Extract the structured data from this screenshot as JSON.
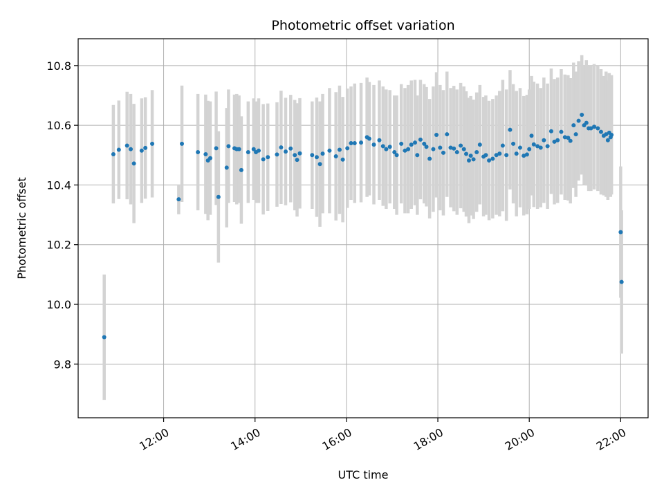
{
  "chart_data": {
    "type": "scatter",
    "title": "Photometric offset variation",
    "xlabel": "UTC time",
    "ylabel": "Photometric offset",
    "x_ticks": [
      "12:00",
      "14:00",
      "16:00",
      "18:00",
      "20:00",
      "22:00"
    ],
    "x_tick_hours": [
      12,
      14,
      16,
      18,
      20,
      22
    ],
    "y_ticks": [
      "9.8",
      "10.0",
      "10.2",
      "10.4",
      "10.6",
      "10.8"
    ],
    "y_tick_values": [
      9.8,
      10.0,
      10.2,
      10.4,
      10.6,
      10.8
    ],
    "xlim_hours": [
      10.13,
      22.6
    ],
    "ylim": [
      9.62,
      10.89
    ],
    "grid": true,
    "legend": "none",
    "colors": {
      "points": "#1f77b4",
      "errorbars": "#d3d3d3",
      "grid": "#b0b0b0"
    },
    "series": [
      {
        "time_hours": [
          10.7,
          10.9,
          11.02,
          11.2,
          11.28,
          11.35,
          11.52,
          11.6,
          11.75,
          12.33,
          12.4,
          12.75,
          12.92,
          12.97,
          13.02,
          13.15,
          13.2,
          13.38,
          13.42,
          13.55,
          13.6,
          13.65,
          13.7,
          13.85,
          13.97,
          14.02,
          14.08,
          14.18,
          14.28,
          14.48,
          14.57,
          14.67,
          14.78,
          14.87,
          14.92,
          14.98,
          15.25,
          15.35,
          15.42,
          15.48,
          15.63,
          15.77,
          15.85,
          15.92,
          16.02,
          16.1,
          16.18,
          16.32,
          16.45,
          16.5,
          16.6,
          16.72,
          16.8,
          16.87,
          16.95,
          17.05,
          17.1,
          17.2,
          17.28,
          17.35,
          17.42,
          17.5,
          17.55,
          17.62,
          17.7,
          17.75,
          17.82,
          17.9,
          17.97,
          18.05,
          18.12,
          18.2,
          18.28,
          18.35,
          18.42,
          18.5,
          18.57,
          18.62,
          18.68,
          18.72,
          18.78,
          18.85,
          18.92,
          19.0,
          19.05,
          19.12,
          19.2,
          19.28,
          19.35,
          19.42,
          19.5,
          19.58,
          19.65,
          19.72,
          19.8,
          19.88,
          19.95,
          20.0,
          20.05,
          20.1,
          20.18,
          20.25,
          20.32,
          20.4,
          20.48,
          20.55,
          20.62,
          20.7,
          20.78,
          20.85,
          20.9,
          20.97,
          21.02,
          21.08,
          21.15,
          21.2,
          21.25,
          21.3,
          21.35,
          21.42,
          21.5,
          21.57,
          21.63,
          21.68,
          21.72,
          21.75,
          21.78,
          21.8,
          22.0,
          22.02
        ],
        "offset": [
          9.89,
          10.503,
          10.518,
          10.532,
          10.52,
          10.472,
          10.515,
          10.524,
          10.538,
          10.352,
          10.538,
          10.51,
          10.503,
          10.482,
          10.49,
          10.523,
          10.36,
          10.458,
          10.53,
          10.523,
          10.52,
          10.52,
          10.45,
          10.51,
          10.52,
          10.51,
          10.515,
          10.486,
          10.493,
          10.502,
          10.526,
          10.512,
          10.522,
          10.5,
          10.484,
          10.506,
          10.5,
          10.493,
          10.47,
          10.505,
          10.515,
          10.496,
          10.518,
          10.485,
          10.523,
          10.54,
          10.54,
          10.542,
          10.56,
          10.555,
          10.535,
          10.55,
          10.53,
          10.52,
          10.528,
          10.51,
          10.5,
          10.538,
          10.515,
          10.52,
          10.535,
          10.542,
          10.5,
          10.552,
          10.538,
          10.528,
          10.488,
          10.52,
          10.568,
          10.525,
          10.508,
          10.57,
          10.525,
          10.522,
          10.51,
          10.532,
          10.52,
          10.504,
          10.482,
          10.498,
          10.486,
          10.51,
          10.535,
          10.495,
          10.5,
          10.482,
          10.488,
          10.5,
          10.505,
          10.532,
          10.5,
          10.585,
          10.538,
          10.505,
          10.525,
          10.498,
          10.502,
          10.52,
          10.565,
          10.536,
          10.53,
          10.525,
          10.55,
          10.53,
          10.58,
          10.545,
          10.55,
          10.578,
          10.56,
          10.558,
          10.548,
          10.6,
          10.57,
          10.615,
          10.635,
          10.6,
          10.608,
          10.59,
          10.59,
          10.595,
          10.59,
          10.578,
          10.565,
          10.57,
          10.55,
          10.575,
          10.56,
          10.568,
          10.242,
          10.075
        ],
        "error": [
          0.21,
          0.165,
          0.165,
          0.18,
          0.185,
          0.2,
          0.175,
          0.17,
          0.18,
          0.05,
          0.195,
          0.195,
          0.2,
          0.2,
          0.19,
          0.19,
          0.22,
          0.2,
          0.19,
          0.18,
          0.185,
          0.18,
          0.18,
          0.17,
          0.17,
          0.17,
          0.175,
          0.185,
          0.18,
          0.175,
          0.19,
          0.18,
          0.18,
          0.185,
          0.19,
          0.185,
          0.18,
          0.2,
          0.21,
          0.2,
          0.21,
          0.215,
          0.215,
          0.21,
          0.2,
          0.19,
          0.2,
          0.2,
          0.2,
          0.19,
          0.2,
          0.2,
          0.2,
          0.2,
          0.19,
          0.19,
          0.2,
          0.2,
          0.21,
          0.215,
          0.215,
          0.21,
          0.2,
          0.2,
          0.2,
          0.2,
          0.2,
          0.21,
          0.21,
          0.21,
          0.21,
          0.21,
          0.2,
          0.21,
          0.21,
          0.21,
          0.21,
          0.21,
          0.21,
          0.2,
          0.2,
          0.2,
          0.2,
          0.2,
          0.2,
          0.2,
          0.2,
          0.2,
          0.21,
          0.22,
          0.22,
          0.2,
          0.2,
          0.21,
          0.2,
          0.2,
          0.2,
          0.2,
          0.2,
          0.21,
          0.21,
          0.2,
          0.21,
          0.21,
          0.21,
          0.21,
          0.21,
          0.21,
          0.21,
          0.21,
          0.21,
          0.21,
          0.21,
          0.2,
          0.2,
          0.2,
          0.21,
          0.21,
          0.21,
          0.21,
          0.21,
          0.21,
          0.2,
          0.21,
          0.2,
          0.2,
          0.2,
          0.2,
          0.22,
          0.24
        ]
      }
    ]
  }
}
